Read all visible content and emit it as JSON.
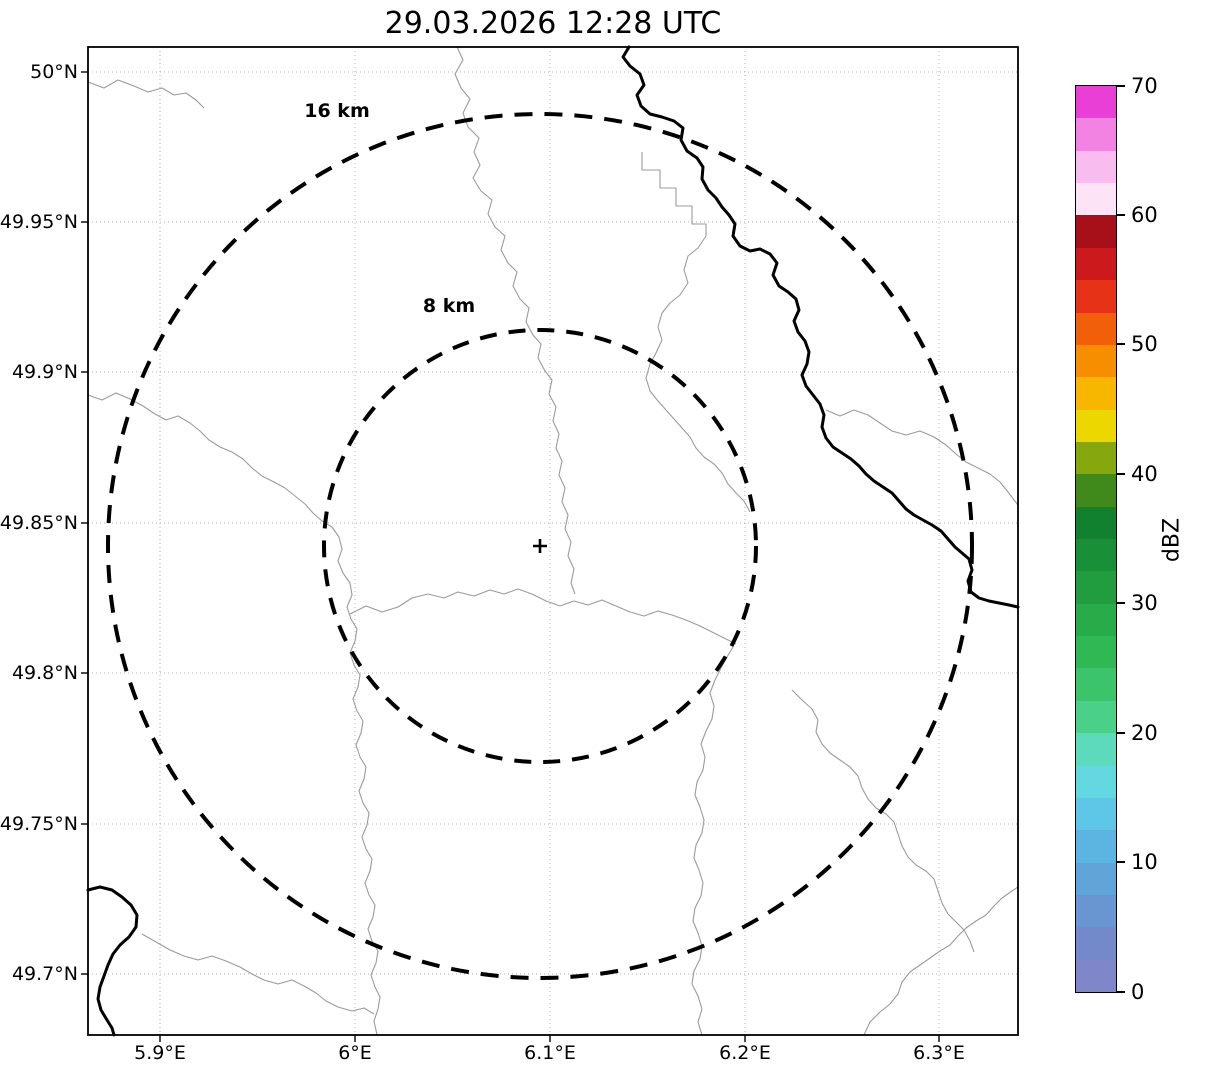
{
  "title": "29.03.2026 12:28 UTC",
  "map": {
    "center_marker": "+",
    "range_rings": [
      {
        "label": "8 km",
        "radius_km": 8
      },
      {
        "label": "16 km",
        "radius_km": 16
      }
    ],
    "axes": {
      "lat_ticks": [
        "50°N",
        "49.95°N",
        "49.9°N",
        "49.85°N",
        "49.8°N",
        "49.75°N",
        "49.7°N"
      ],
      "lon_ticks": [
        "5.9°E",
        "6°E",
        "6.1°E",
        "6.2°E",
        "6.3°E"
      ]
    }
  },
  "colorbar": {
    "unit_label": "dBZ",
    "min": 0,
    "max": 70,
    "step": 2.5,
    "tick_labels": [
      "0",
      "10",
      "20",
      "30",
      "40",
      "50",
      "60",
      "70"
    ],
    "colors_bottom_to_top": [
      "#7f86c9",
      "#7389c9",
      "#6996d0",
      "#61a4d8",
      "#5cb4e0",
      "#5ec7e7",
      "#63d8e1",
      "#5cdabb",
      "#4bd08a",
      "#3cc46a",
      "#30b855",
      "#28ab49",
      "#219d40",
      "#198f38",
      "#12812f",
      "#3f8a1a",
      "#86a80e",
      "#ecd800",
      "#f7b600",
      "#f68e00",
      "#f16008",
      "#e63317",
      "#cc1a1c",
      "#a81019",
      "#fce4f6",
      "#f8bcee",
      "#f283e3",
      "#e93fd7"
    ]
  },
  "chart_data": {
    "type": "heatmap",
    "title": "29.03.2026 12:28 UTC",
    "colorbar": {
      "label": "dBZ",
      "range": [
        0,
        70
      ],
      "tick_step": 10
    },
    "x_axis": {
      "ticks": [
        "5.9°E",
        "6°E",
        "6.1°E",
        "6.2°E",
        "6.3°E"
      ],
      "range_deg_e": [
        5.86,
        6.34
      ]
    },
    "y_axis": {
      "ticks": [
        "50°N",
        "49.95°N",
        "49.9°N",
        "49.85°N",
        "49.8°N",
        "49.75°N",
        "49.7°N"
      ],
      "range_deg_n": [
        49.68,
        50.01
      ]
    },
    "range_rings_km": [
      8,
      16
    ],
    "precipitation_echoes": []
  }
}
